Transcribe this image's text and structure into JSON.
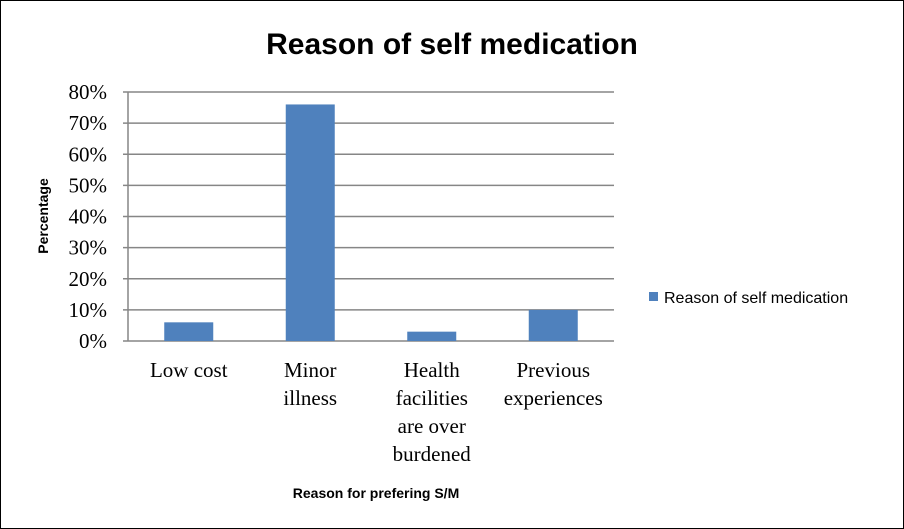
{
  "chart_data": {
    "type": "bar",
    "title": "Reason of self medication",
    "xlabel": "Reason for prefering S/M",
    "ylabel": "Percentage",
    "categories": [
      [
        "Low cost"
      ],
      [
        "Minor",
        "illness"
      ],
      [
        "Health",
        "facilities",
        "are over",
        "burdened"
      ],
      [
        "Previous",
        "experiences"
      ]
    ],
    "series": [
      {
        "name": "Reason of self medication",
        "values": [
          6,
          76,
          3,
          10
        ],
        "color": "#4F81BD"
      }
    ],
    "ylim": [
      0,
      80
    ],
    "yticks": [
      "0%",
      "10%",
      "20%",
      "30%",
      "40%",
      "50%",
      "60%",
      "70%",
      "80%"
    ],
    "grid": true,
    "legend": "right"
  }
}
